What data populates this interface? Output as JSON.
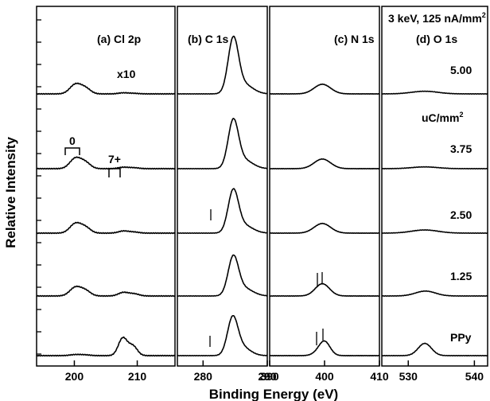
{
  "chart_data": {
    "type": "line",
    "xlabel": "Binding Energy (eV)",
    "ylabel": "Relative Intensity",
    "conditions": "3 keV, 125 nA/mm",
    "conditions_sup": "2",
    "dose_unit": "uC/mm",
    "dose_unit_sup": "2",
    "scale_note": "x10",
    "cl_markers": [
      "0",
      "7+"
    ],
    "series": [
      {
        "name": "5.00"
      },
      {
        "name": "3.75"
      },
      {
        "name": "2.50"
      },
      {
        "name": "1.25"
      },
      {
        "name": "PPy"
      }
    ],
    "panels": [
      {
        "label": "(a) Cl 2p",
        "xlim": [
          194,
          216
        ],
        "xticks": [
          200,
          210
        ],
        "peaks": [
          [
            {
              "x": 200.2,
              "h": 0.55,
              "w": 0.9
            },
            {
              "x": 201.8,
              "h": 0.3,
              "w": 0.8
            },
            {
              "x": 207.8,
              "h": 0.06,
              "w": 0.8
            },
            {
              "x": 209.5,
              "h": 0.03,
              "w": 0.8
            }
          ],
          [
            {
              "x": 200.2,
              "h": 0.6,
              "w": 0.9
            },
            {
              "x": 201.8,
              "h": 0.32,
              "w": 0.8
            },
            {
              "x": 207.8,
              "h": 0.08,
              "w": 0.8
            },
            {
              "x": 209.5,
              "h": 0.05,
              "w": 0.8
            }
          ],
          [
            {
              "x": 200.2,
              "h": 0.55,
              "w": 0.9
            },
            {
              "x": 201.8,
              "h": 0.3,
              "w": 0.8
            },
            {
              "x": 207.8,
              "h": 0.12,
              "w": 0.8
            },
            {
              "x": 209.5,
              "h": 0.06,
              "w": 0.8
            }
          ],
          [
            {
              "x": 200.2,
              "h": 0.5,
              "w": 0.9
            },
            {
              "x": 201.8,
              "h": 0.28,
              "w": 0.8
            },
            {
              "x": 207.8,
              "h": 0.2,
              "w": 0.8
            },
            {
              "x": 209.5,
              "h": 0.12,
              "w": 0.8
            }
          ],
          [
            {
              "x": 200.2,
              "h": 0.06,
              "w": 0.9
            },
            {
              "x": 201.8,
              "h": 0.04,
              "w": 0.8
            },
            {
              "x": 207.7,
              "h": 1.0,
              "w": 0.7
            },
            {
              "x": 209.3,
              "h": 0.55,
              "w": 0.7
            }
          ]
        ]
      },
      {
        "label": "(b) C 1s",
        "xlim": [
          276,
          290
        ],
        "xticks": [
          280,
          290
        ],
        "peaks": [
          [
            {
              "x": 284.7,
              "h": 3.0,
              "w": 0.8
            },
            {
              "x": 286.3,
              "h": 0.55,
              "w": 1.4
            }
          ],
          [
            {
              "x": 284.7,
              "h": 2.6,
              "w": 0.8
            },
            {
              "x": 286.3,
              "h": 0.5,
              "w": 1.4
            }
          ],
          [
            {
              "x": 284.7,
              "h": 2.3,
              "w": 0.8
            },
            {
              "x": 286.3,
              "h": 0.45,
              "w": 1.4
            }
          ],
          [
            {
              "x": 284.7,
              "h": 2.1,
              "w": 0.8
            },
            {
              "x": 286.3,
              "h": 0.45,
              "w": 1.4
            }
          ],
          [
            {
              "x": 284.6,
              "h": 2.0,
              "w": 0.8
            },
            {
              "x": 286.0,
              "h": 0.5,
              "w": 1.3
            }
          ]
        ]
      },
      {
        "label": "(c) N 1s",
        "xlim": [
          390,
          410
        ],
        "xticks": [
          390,
          400,
          410
        ],
        "peaks": [
          [
            {
              "x": 399.6,
              "h": 0.55,
              "w": 1.5
            }
          ],
          [
            {
              "x": 399.6,
              "h": 0.55,
              "w": 1.5
            }
          ],
          [
            {
              "x": 399.6,
              "h": 0.55,
              "w": 1.5
            }
          ],
          [
            {
              "x": 399.6,
              "h": 0.7,
              "w": 1.3
            }
          ],
          [
            {
              "x": 400.0,
              "h": 0.8,
              "w": 1.0
            },
            {
              "x": 398.6,
              "h": 0.1,
              "w": 1.0
            }
          ]
        ]
      },
      {
        "label": "(d) O 1s",
        "xlim": [
          526,
          542
        ],
        "xticks": [
          530,
          540
        ],
        "peaks": [
          [
            {
              "x": 532.5,
              "h": 0.15,
              "w": 2.0
            }
          ],
          [
            {
              "x": 532.5,
              "h": 0.1,
              "w": 2.0
            }
          ],
          [
            {
              "x": 532.5,
              "h": 0.18,
              "w": 2.0
            }
          ],
          [
            {
              "x": 532.6,
              "h": 0.28,
              "w": 1.5
            }
          ],
          [
            {
              "x": 532.5,
              "h": 0.7,
              "w": 1.0
            }
          ]
        ]
      }
    ]
  }
}
